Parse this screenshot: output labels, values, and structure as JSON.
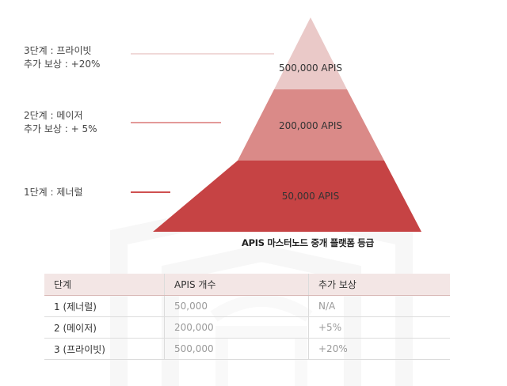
{
  "pyramid": {
    "tiers": [
      {
        "amount": "500,000 APIS",
        "fill": "#eac9c8"
      },
      {
        "amount": "200,000 APIS",
        "fill": "#da8a88"
      },
      {
        "amount": "50,000 APIS",
        "fill": "#c64344"
      }
    ],
    "caption": "APIS 마스터노드 중개 플랫폼 등급"
  },
  "side_labels": [
    {
      "line1": "3단계 : 프라이빗",
      "line2": "추가 보상 : +20%",
      "connector_color": "#f0d9d8"
    },
    {
      "line1": "2단계 : 메이저",
      "line2": "추가 보상 : + 5%",
      "connector_color": "#e39a99"
    },
    {
      "line1": "1단계 : 제너럴",
      "line2": "",
      "connector_color": "#cf5050"
    }
  ],
  "table": {
    "headers": [
      "단계",
      "APIS 개수",
      "추가 보상"
    ],
    "rows": [
      [
        "1 (제너럴)",
        "50,000",
        "N/A"
      ],
      [
        "2 (메이저)",
        "200,000",
        "+5%"
      ],
      [
        "3 (프라이빗)",
        "500,000",
        "+20%"
      ]
    ]
  }
}
